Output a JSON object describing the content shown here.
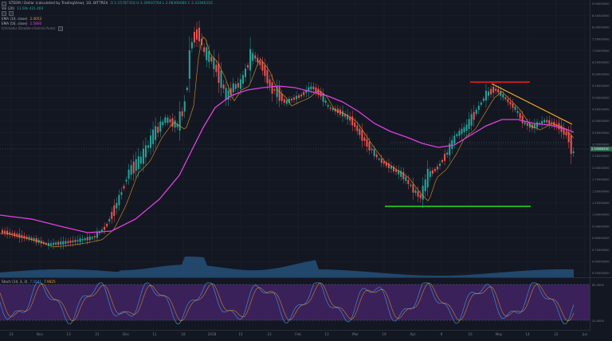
{
  "header": {
    "symbol_title": "STEEM / Dollar (calculated by TradingView), 1D, BITTREX",
    "ohlc": "O 2.15787316  H 2.39910764  L 2.08306060  C 2.33366316"
  },
  "legend": [
    {
      "name": "Vol (20)",
      "value": "13.00k  421.404"
    },
    {
      "name": "",
      "value": ""
    },
    {
      "name": "EMA (10, close)",
      "value": "2.4053"
    },
    {
      "name": "EMA (50, close)",
      "value": "2.5860"
    },
    {
      "name": "Ichimoku (Double-channel Auto)",
      "value": ""
    }
  ],
  "oscillator": {
    "name": "Stoch (14, 3, 3)",
    "k_value": "7.5641",
    "d_value": "7.9825",
    "levels": [
      "80.0000",
      "20.0000"
    ]
  },
  "price_axis_labels": [
    "9.00000000",
    "8.50000000",
    "8.00000000",
    "7.50000000",
    "7.00000000",
    "6.50000000",
    "6.00000000",
    "5.50000000",
    "5.00000000",
    "4.50000000",
    "4.00000000",
    "3.50000000",
    "3.00000000",
    "2.50000000",
    "2.00000000",
    "1.75000000",
    "1.50000000",
    "1.25000000",
    "1.00000000",
    "0.90000000",
    "0.80000000",
    "0.70000000",
    "0.60000000",
    "0.50000000"
  ],
  "last_price_tag": "2.33366316",
  "time_axis_labels": [
    "23",
    "Nov",
    "13",
    "21",
    "Dec",
    "11",
    "18",
    "2018",
    "15",
    "23",
    "Feb",
    "13",
    "Mar",
    "19",
    "Apr",
    "9",
    "16",
    "May",
    "14",
    "22",
    "Jun"
  ],
  "colors": {
    "background": "#131722",
    "up": "#26a69a",
    "down": "#ef5350",
    "ema10": "#f0a020",
    "ema50": "#e040e0",
    "resistance": "#ff1a1a",
    "support": "#22dd22",
    "trendline": "#ffb020",
    "volume": "#2e6fa7",
    "stoch_band": "#5b2a86"
  }
}
